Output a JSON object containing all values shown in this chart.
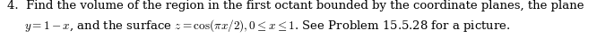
{
  "line1": "4.  Find the volume of the region in the first octant bounded by the coordinate planes, the plane",
  "line2": "$y = 1 - x$, and the surface $z = \\cos(\\pi x/2), 0 \\leq x \\leq 1$. See Problem 15.5.28 for a picture.",
  "font_size": 9.5,
  "text_color": "#000000",
  "background_color": "#ffffff",
  "fig_width": 6.85,
  "fig_height": 0.52,
  "dpi": 100
}
